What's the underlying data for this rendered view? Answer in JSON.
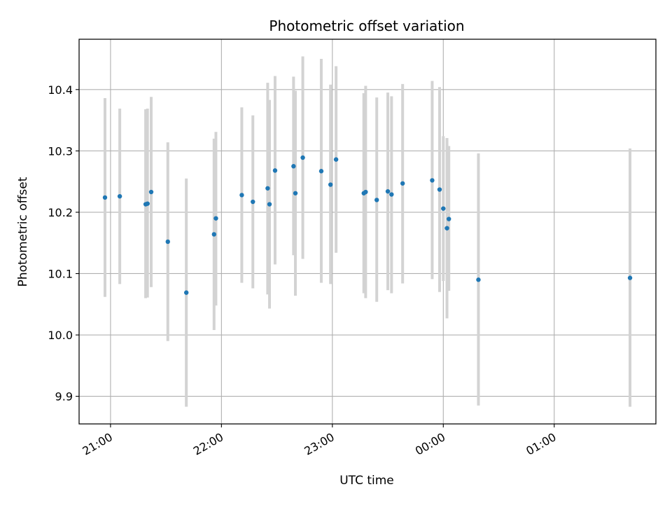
{
  "chart_data": {
    "type": "scatter",
    "title": "Photometric offset variation",
    "xlabel": "UTC time",
    "ylabel": "Photometric offset",
    "x_ticks": [
      "21:00",
      "22:00",
      "23:00",
      "00:00",
      "01:00"
    ],
    "x_tick_minutes": [
      0,
      60,
      120,
      180,
      240
    ],
    "xlim_minutes": [
      -17,
      295
    ],
    "y_ticks": [
      9.9,
      10.0,
      10.1,
      10.2,
      10.3,
      10.4
    ],
    "ylim": [
      9.855,
      10.482
    ],
    "grid": true,
    "marker_color": "#1f77b4",
    "errorbar_color": "#d3d3d3",
    "points": [
      {
        "t": -3,
        "y": 10.224,
        "lo": 10.062,
        "hi": 10.386
      },
      {
        "t": 5,
        "y": 10.226,
        "lo": 10.083,
        "hi": 10.369
      },
      {
        "t": 19,
        "y": 10.213,
        "lo": 10.06,
        "hi": 10.368
      },
      {
        "t": 20,
        "y": 10.214,
        "lo": 10.061,
        "hi": 10.369
      },
      {
        "t": 22,
        "y": 10.233,
        "lo": 10.078,
        "hi": 10.388
      },
      {
        "t": 31,
        "y": 10.152,
        "lo": 9.99,
        "hi": 10.314
      },
      {
        "t": 41,
        "y": 10.069,
        "lo": 9.883,
        "hi": 10.255
      },
      {
        "t": 56,
        "y": 10.164,
        "lo": 10.008,
        "hi": 10.32
      },
      {
        "t": 57,
        "y": 10.19,
        "lo": 10.048,
        "hi": 10.331
      },
      {
        "t": 71,
        "y": 10.228,
        "lo": 10.085,
        "hi": 10.371
      },
      {
        "t": 77,
        "y": 10.217,
        "lo": 10.076,
        "hi": 10.358
      },
      {
        "t": 85,
        "y": 10.239,
        "lo": 10.066,
        "hi": 10.411
      },
      {
        "t": 86,
        "y": 10.213,
        "lo": 10.043,
        "hi": 10.383
      },
      {
        "t": 89,
        "y": 10.268,
        "lo": 10.115,
        "hi": 10.422
      },
      {
        "t": 99,
        "y": 10.275,
        "lo": 10.13,
        "hi": 10.421
      },
      {
        "t": 100,
        "y": 10.231,
        "lo": 10.064,
        "hi": 10.398
      },
      {
        "t": 104,
        "y": 10.289,
        "lo": 10.124,
        "hi": 10.454
      },
      {
        "t": 114,
        "y": 10.267,
        "lo": 10.085,
        "hi": 10.45
      },
      {
        "t": 119,
        "y": 10.245,
        "lo": 10.083,
        "hi": 10.408
      },
      {
        "t": 122,
        "y": 10.286,
        "lo": 10.134,
        "hi": 10.438
      },
      {
        "t": 137,
        "y": 10.231,
        "lo": 10.068,
        "hi": 10.394
      },
      {
        "t": 138,
        "y": 10.233,
        "lo": 10.06,
        "hi": 10.406
      },
      {
        "t": 144,
        "y": 10.22,
        "lo": 10.054,
        "hi": 10.387
      },
      {
        "t": 150,
        "y": 10.234,
        "lo": 10.073,
        "hi": 10.395
      },
      {
        "t": 152,
        "y": 10.229,
        "lo": 10.068,
        "hi": 10.389
      },
      {
        "t": 158,
        "y": 10.247,
        "lo": 10.084,
        "hi": 10.409
      },
      {
        "t": 174,
        "y": 10.252,
        "lo": 10.091,
        "hi": 10.414
      },
      {
        "t": 178,
        "y": 10.237,
        "lo": 10.07,
        "hi": 10.404
      },
      {
        "t": 180,
        "y": 10.206,
        "lo": 10.088,
        "hi": 10.324
      },
      {
        "t": 182,
        "y": 10.174,
        "lo": 10.027,
        "hi": 10.321
      },
      {
        "t": 183,
        "y": 10.189,
        "lo": 10.072,
        "hi": 10.308
      },
      {
        "t": 199,
        "y": 10.09,
        "lo": 9.885,
        "hi": 10.296
      },
      {
        "t": 281,
        "y": 10.093,
        "lo": 9.883,
        "hi": 10.304
      }
    ]
  }
}
